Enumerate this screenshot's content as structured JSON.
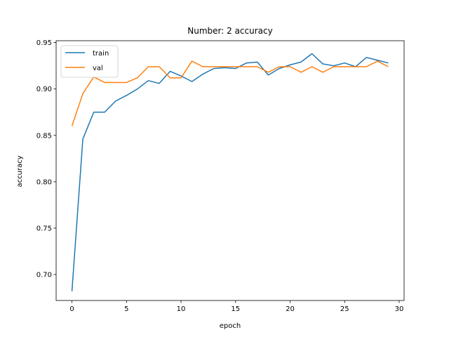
{
  "chart_data": {
    "type": "line",
    "title": "Number: 2 accuracy",
    "xlabel": "epoch",
    "ylabel": "accuracy",
    "xlim": [
      -1.45,
      30.45
    ],
    "ylim": [
      0.672,
      0.952
    ],
    "xticks": [
      0,
      5,
      10,
      15,
      20,
      25,
      30
    ],
    "yticks": [
      0.7,
      0.75,
      0.8,
      0.85,
      0.9,
      0.95
    ],
    "ytick_labels": [
      "0.70",
      "0.75",
      "0.80",
      "0.85",
      "0.90",
      "0.95"
    ],
    "grid": false,
    "legend": "upper-left",
    "x": [
      0,
      1,
      2,
      3,
      4,
      5,
      6,
      7,
      8,
      9,
      10,
      11,
      12,
      13,
      14,
      15,
      16,
      17,
      18,
      19,
      20,
      21,
      22,
      23,
      24,
      25,
      26,
      27,
      28,
      29
    ],
    "series": [
      {
        "name": "train",
        "color": "#1f77b4",
        "values": [
          0.682,
          0.846,
          0.875,
          0.875,
          0.887,
          0.893,
          0.9,
          0.909,
          0.906,
          0.919,
          0.914,
          0.908,
          0.916,
          0.922,
          0.923,
          0.922,
          0.928,
          0.929,
          0.915,
          0.922,
          0.926,
          0.929,
          0.938,
          0.927,
          0.925,
          0.928,
          0.924,
          0.934,
          0.931,
          0.928
        ]
      },
      {
        "name": "val",
        "color": "#ff7f0e",
        "values": [
          0.86,
          0.895,
          0.913,
          0.907,
          0.907,
          0.907,
          0.912,
          0.924,
          0.924,
          0.912,
          0.912,
          0.93,
          0.924,
          0.924,
          0.924,
          0.924,
          0.924,
          0.924,
          0.918,
          0.924,
          0.924,
          0.918,
          0.924,
          0.918,
          0.924,
          0.924,
          0.924,
          0.924,
          0.93,
          0.924
        ]
      }
    ]
  }
}
